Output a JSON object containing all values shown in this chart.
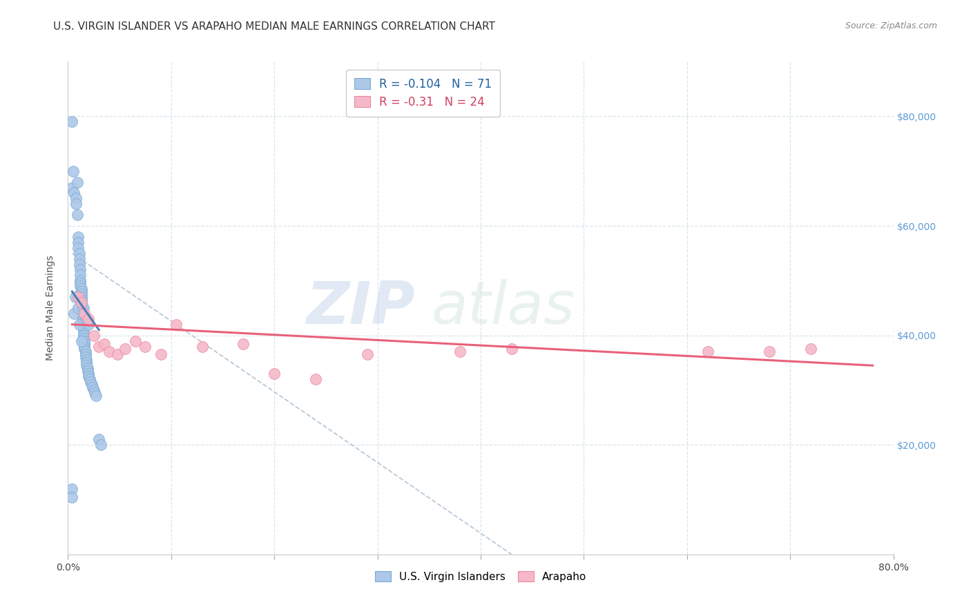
{
  "title": "U.S. VIRGIN ISLANDER VS ARAPAHO MEDIAN MALE EARNINGS CORRELATION CHART",
  "source": "Source: ZipAtlas.com",
  "ylabel": "Median Male Earnings",
  "xlim": [
    0.0,
    0.8
  ],
  "ylim": [
    0,
    90000
  ],
  "xtick_values": [
    0.0,
    0.1,
    0.2,
    0.3,
    0.4,
    0.5,
    0.6,
    0.7,
    0.8
  ],
  "xtick_labels_show": [
    "0.0%",
    "",
    "",
    "",
    "",
    "",
    "",
    "",
    "80.0%"
  ],
  "ytick_values": [
    0,
    20000,
    40000,
    60000,
    80000
  ],
  "ytick_right_labels": [
    "",
    "$20,000",
    "$40,000",
    "$60,000",
    "$80,000"
  ],
  "legend_label1": "U.S. Virgin Islanders",
  "legend_label2": "Arapaho",
  "R1": -0.104,
  "N1": 71,
  "R2": -0.31,
  "N2": 24,
  "color1": "#adc8e8",
  "color2": "#f5b8c8",
  "edge_color1": "#7aaad4",
  "edge_color2": "#e888a0",
  "line_color1": "#4a7fb5",
  "line_color2": "#e8607a",
  "dashed_line_color": "#b8c8d8",
  "watermark_zip": "ZIP",
  "watermark_atlas": "atlas",
  "blue_scatter_x": [
    0.004,
    0.004,
    0.005,
    0.006,
    0.008,
    0.009,
    0.01,
    0.01,
    0.01,
    0.011,
    0.011,
    0.011,
    0.012,
    0.012,
    0.012,
    0.012,
    0.012,
    0.013,
    0.013,
    0.013,
    0.013,
    0.013,
    0.013,
    0.013,
    0.014,
    0.014,
    0.014,
    0.014,
    0.014,
    0.015,
    0.015,
    0.015,
    0.015,
    0.015,
    0.015,
    0.015,
    0.016,
    0.016,
    0.016,
    0.016,
    0.017,
    0.017,
    0.017,
    0.018,
    0.018,
    0.018,
    0.019,
    0.019,
    0.02,
    0.02,
    0.021,
    0.022,
    0.023,
    0.024,
    0.025,
    0.026,
    0.027,
    0.03,
    0.032,
    0.004,
    0.004,
    0.006,
    0.007,
    0.008,
    0.009,
    0.01,
    0.011,
    0.013,
    0.015,
    0.018,
    0.02
  ],
  "blue_scatter_y": [
    79000,
    67000,
    70000,
    66000,
    65000,
    62000,
    58000,
    57000,
    56000,
    55000,
    54000,
    53000,
    52000,
    51000,
    50000,
    49500,
    49000,
    48500,
    48000,
    47500,
    47000,
    46500,
    46000,
    45500,
    45000,
    44500,
    44000,
    43500,
    43000,
    42500,
    42000,
    41500,
    41000,
    40500,
    40000,
    39500,
    39000,
    38500,
    38000,
    37500,
    37000,
    36500,
    36000,
    35500,
    35000,
    34500,
    34000,
    33500,
    33000,
    32500,
    32000,
    31500,
    31000,
    30500,
    30000,
    29500,
    29000,
    21000,
    20000,
    12000,
    10500,
    44000,
    47000,
    64000,
    68000,
    45000,
    42000,
    39000,
    45000,
    43000,
    42000
  ],
  "pink_scatter_x": [
    0.01,
    0.013,
    0.016,
    0.02,
    0.025,
    0.03,
    0.035,
    0.04,
    0.048,
    0.055,
    0.065,
    0.075,
    0.09,
    0.105,
    0.13,
    0.17,
    0.2,
    0.24,
    0.29,
    0.38,
    0.43,
    0.62,
    0.68,
    0.72
  ],
  "pink_scatter_y": [
    47000,
    46000,
    44000,
    43000,
    40000,
    38000,
    38500,
    37000,
    36500,
    37500,
    39000,
    38000,
    36500,
    42000,
    38000,
    38500,
    33000,
    32000,
    36500,
    37000,
    37500,
    37000,
    37000,
    37500
  ],
  "blue_line_x": [
    0.004,
    0.03
  ],
  "blue_line_y": [
    48000,
    41000
  ],
  "pink_line_x": [
    0.004,
    0.78
  ],
  "pink_line_y": [
    42000,
    34500
  ],
  "dashed_line_x": [
    0.004,
    0.43
  ],
  "dashed_line_y": [
    55000,
    0
  ],
  "background_color": "#ffffff",
  "grid_color": "#d8e4ec",
  "title_fontsize": 11,
  "axis_label_fontsize": 10,
  "tick_fontsize": 10,
  "source_fontsize": 9,
  "right_tick_color": "#5b9bd5",
  "scatter_size": 130
}
